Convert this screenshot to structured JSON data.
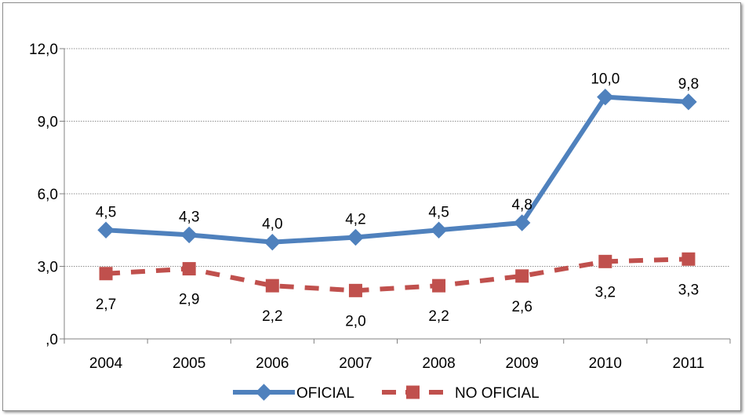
{
  "chart_data": {
    "type": "line",
    "categories": [
      "2004",
      "2005",
      "2006",
      "2007",
      "2008",
      "2009",
      "2010",
      "2011"
    ],
    "yticks": [
      ",0",
      "3,0",
      "6,0",
      "9,0",
      "12,0"
    ],
    "ylim": [
      0,
      12
    ],
    "grid": true,
    "legend_position": "bottom",
    "series": [
      {
        "name": "OFICIAL",
        "values": [
          4.5,
          4.3,
          4.0,
          4.2,
          4.5,
          4.8,
          10.0,
          9.8
        ],
        "labels": [
          "4,5",
          "4,3",
          "4,0",
          "4,2",
          "4,5",
          "4,8",
          "10,0",
          "9,8"
        ],
        "color": "#4f81bd",
        "marker": "diamond",
        "line_style": "solid"
      },
      {
        "name": "NO OFICIAL",
        "values": [
          2.7,
          2.9,
          2.2,
          2.0,
          2.2,
          2.6,
          3.2,
          3.3
        ],
        "labels": [
          "2,7",
          "2,9",
          "2,2",
          "2,0",
          "2,2",
          "2,6",
          "3,2",
          "3,3"
        ],
        "color": "#c0504d",
        "marker": "square",
        "line_style": "dashed"
      }
    ]
  }
}
